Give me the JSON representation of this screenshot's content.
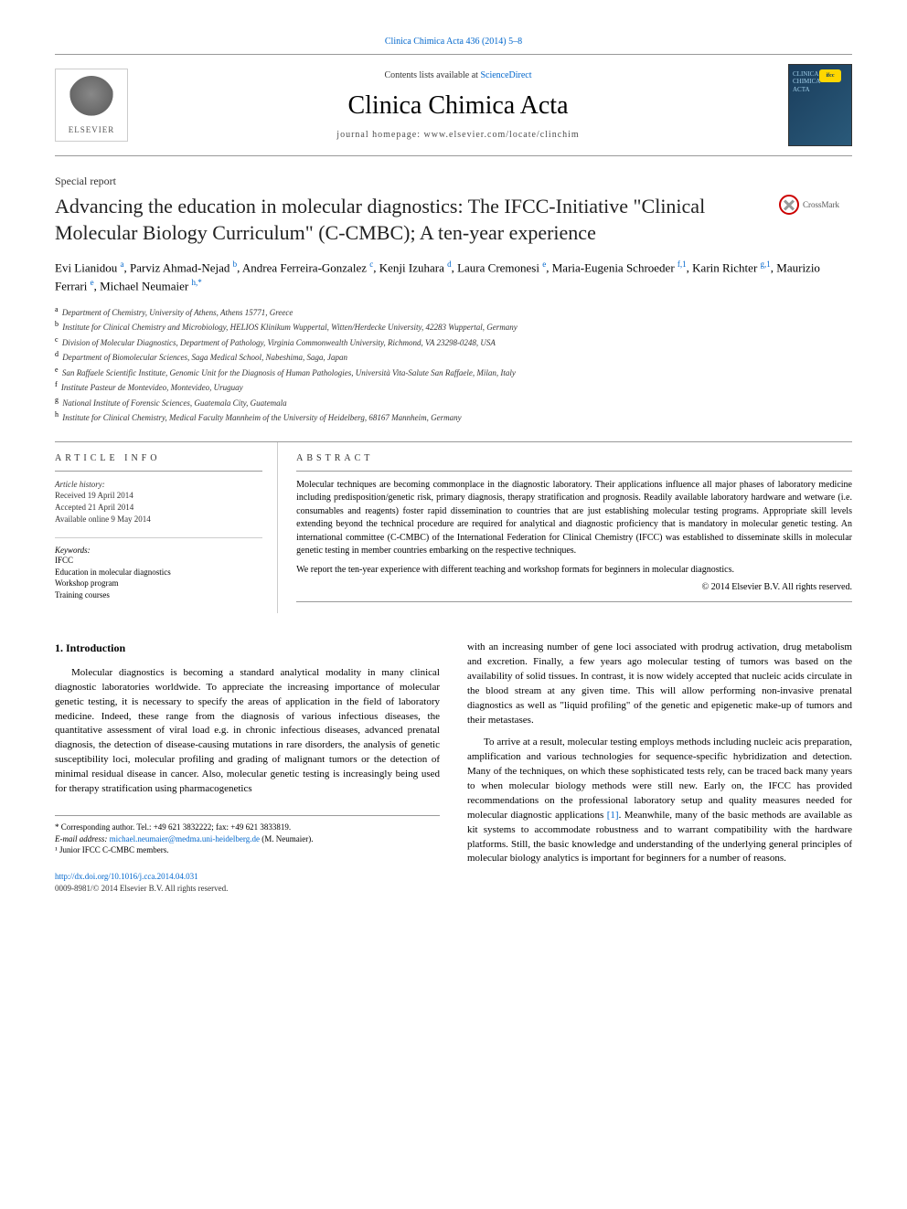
{
  "header": {
    "citation_link": "Clinica Chimica Acta 436 (2014) 5–8",
    "contents_prefix": "Contents lists available at ",
    "contents_link": "ScienceDirect",
    "journal_name": "Clinica Chimica Acta",
    "homepage_prefix": "journal homepage: ",
    "homepage_url": "www.elsevier.com/locate/clinchim",
    "elsevier_label": "ELSEVIER",
    "cover_line1": "CLINICA",
    "cover_line2": "CHIMICA",
    "cover_line3": "ACTA",
    "ifcc_label": "ifcc"
  },
  "crossmark": "CrossMark",
  "article": {
    "type": "Special report",
    "title": "Advancing the education in molecular diagnostics: The IFCC-Initiative \"Clinical Molecular Biology Curriculum\" (C-CMBC); A ten-year experience"
  },
  "authors": [
    {
      "name": "Evi Lianidou ",
      "sup": "a"
    },
    {
      "name": ", Parviz Ahmad-Nejad ",
      "sup": "b"
    },
    {
      "name": ", Andrea Ferreira-Gonzalez ",
      "sup": "c"
    },
    {
      "name": ", Kenji Izuhara ",
      "sup": "d"
    },
    {
      "name": ", Laura Cremonesi ",
      "sup": "e"
    },
    {
      "name": ", Maria-Eugenia Schroeder ",
      "sup": "f,1"
    },
    {
      "name": ", Karin Richter ",
      "sup": "g,1"
    },
    {
      "name": ", Maurizio Ferrari ",
      "sup": "e"
    },
    {
      "name": ", Michael Neumaier ",
      "sup": "h,*"
    }
  ],
  "affiliations": [
    {
      "sup": "a",
      "text": "Department of Chemistry, University of Athens, Athens 15771, Greece"
    },
    {
      "sup": "b",
      "text": "Institute for Clinical Chemistry and Microbiology, HELIOS Klinikum Wuppertal, Witten/Herdecke University, 42283 Wuppertal, Germany"
    },
    {
      "sup": "c",
      "text": "Division of Molecular Diagnostics, Department of Pathology, Virginia Commonwealth University, Richmond, VA 23298-0248, USA"
    },
    {
      "sup": "d",
      "text": "Department of Biomolecular Sciences, Saga Medical School, Nabeshima, Saga, Japan"
    },
    {
      "sup": "e",
      "text": "San Raffaele Scientific Institute, Genomic Unit for the Diagnosis of Human Pathologies, Università Vita-Salute San Raffaele, Milan, Italy"
    },
    {
      "sup": "f",
      "text": "Institute Pasteur de Montevideo, Montevideo, Uruguay"
    },
    {
      "sup": "g",
      "text": "National Institute of Forensic Sciences, Guatemala City, Guatemala"
    },
    {
      "sup": "h",
      "text": "Institute for Clinical Chemistry, Medical Faculty Mannheim of the University of Heidelberg, 68167 Mannheim, Germany"
    }
  ],
  "info": {
    "label": "ARTICLE INFO",
    "history_head": "Article history:",
    "received": "Received 19 April 2014",
    "accepted": "Accepted 21 April 2014",
    "online": "Available online 9 May 2014",
    "keywords_head": "Keywords:",
    "keywords": [
      "IFCC",
      "Education in molecular diagnostics",
      "Workshop program",
      "Training courses"
    ]
  },
  "abstract": {
    "label": "ABSTRACT",
    "p1": "Molecular techniques are becoming commonplace in the diagnostic laboratory. Their applications influence all major phases of laboratory medicine including predisposition/genetic risk, primary diagnosis, therapy stratification and prognosis. Readily available laboratory hardware and wetware (i.e. consumables and reagents) foster rapid dissemination to countries that are just establishing molecular testing programs. Appropriate skill levels extending beyond the technical procedure are required for analytical and diagnostic proficiency that is mandatory in molecular genetic testing. An international committee (C-CMBC) of the International Federation for Clinical Chemistry (IFCC) was established to disseminate skills in molecular genetic testing in member countries embarking on the respective techniques.",
    "p2": "We report the ten-year experience with different teaching and workshop formats for beginners in molecular diagnostics.",
    "copyright": "© 2014 Elsevier B.V. All rights reserved."
  },
  "body": {
    "intro_heading": "1. Introduction",
    "col1_p1": "Molecular diagnostics is becoming a standard analytical modality in many clinical diagnostic laboratories worldwide. To appreciate the increasing importance of molecular genetic testing, it is necessary to specify the areas of application in the field of laboratory medicine. Indeed, these range from the diagnosis of various infectious diseases, the quantitative assessment of viral load e.g. in chronic infectious diseases, advanced prenatal diagnosis, the detection of disease-causing mutations in rare disorders, the analysis of genetic susceptibility loci, molecular profiling and grading of malignant tumors or the detection of minimal residual disease in cancer. Also, molecular genetic testing is increasingly being used for therapy stratification using pharmacogenetics",
    "col2_p1": "with an increasing number of gene loci associated with prodrug activation, drug metabolism and excretion. Finally, a few years ago molecular testing of tumors was based on the availability of solid tissues. In contrast, it is now widely accepted that nucleic acids circulate in the blood stream at any given time. This will allow performing non-invasive prenatal diagnostics as well as \"liquid profiling\" of the genetic and epigenetic make-up of tumors and their metastases.",
    "col2_p2_a": "To arrive at a result, molecular testing employs methods including nucleic acis preparation, amplification and various technologies for sequence-specific hybridization and detection. Many of the techniques, on which these sophisticated tests rely, can be traced back many years to when molecular biology methods were still new. Early on, the IFCC has provided recommendations on the professional laboratory setup and quality measures needed for molecular diagnostic applications ",
    "col2_p2_ref": "[1]",
    "col2_p2_b": ". Meanwhile, many of the basic methods are available as kit systems to accommodate robustness and to warrant compatibility with the hardware platforms. Still, the basic knowledge and understanding of the underlying general principles of molecular biology analytics is important for beginners for a number of reasons."
  },
  "footnotes": {
    "corresponding": "* Corresponding author. Tel.: +49 621 3832222; fax: +49 621 3833819.",
    "email_label": "E-mail address: ",
    "email": "michael.neumaier@medma.uni-heidelberg.de",
    "email_suffix": " (M. Neumaier).",
    "junior": "¹ Junior IFCC C-CMBC members."
  },
  "footer": {
    "doi": "http://dx.doi.org/10.1016/j.cca.2014.04.031",
    "copyright": "0009-8981/© 2014 Elsevier B.V. All rights reserved."
  },
  "colors": {
    "link": "#0066cc",
    "text": "#000000",
    "border": "#999999",
    "cover_bg1": "#1a3d5c",
    "cover_bg2": "#2a5a7a",
    "cover_text": "#9fcde8"
  }
}
